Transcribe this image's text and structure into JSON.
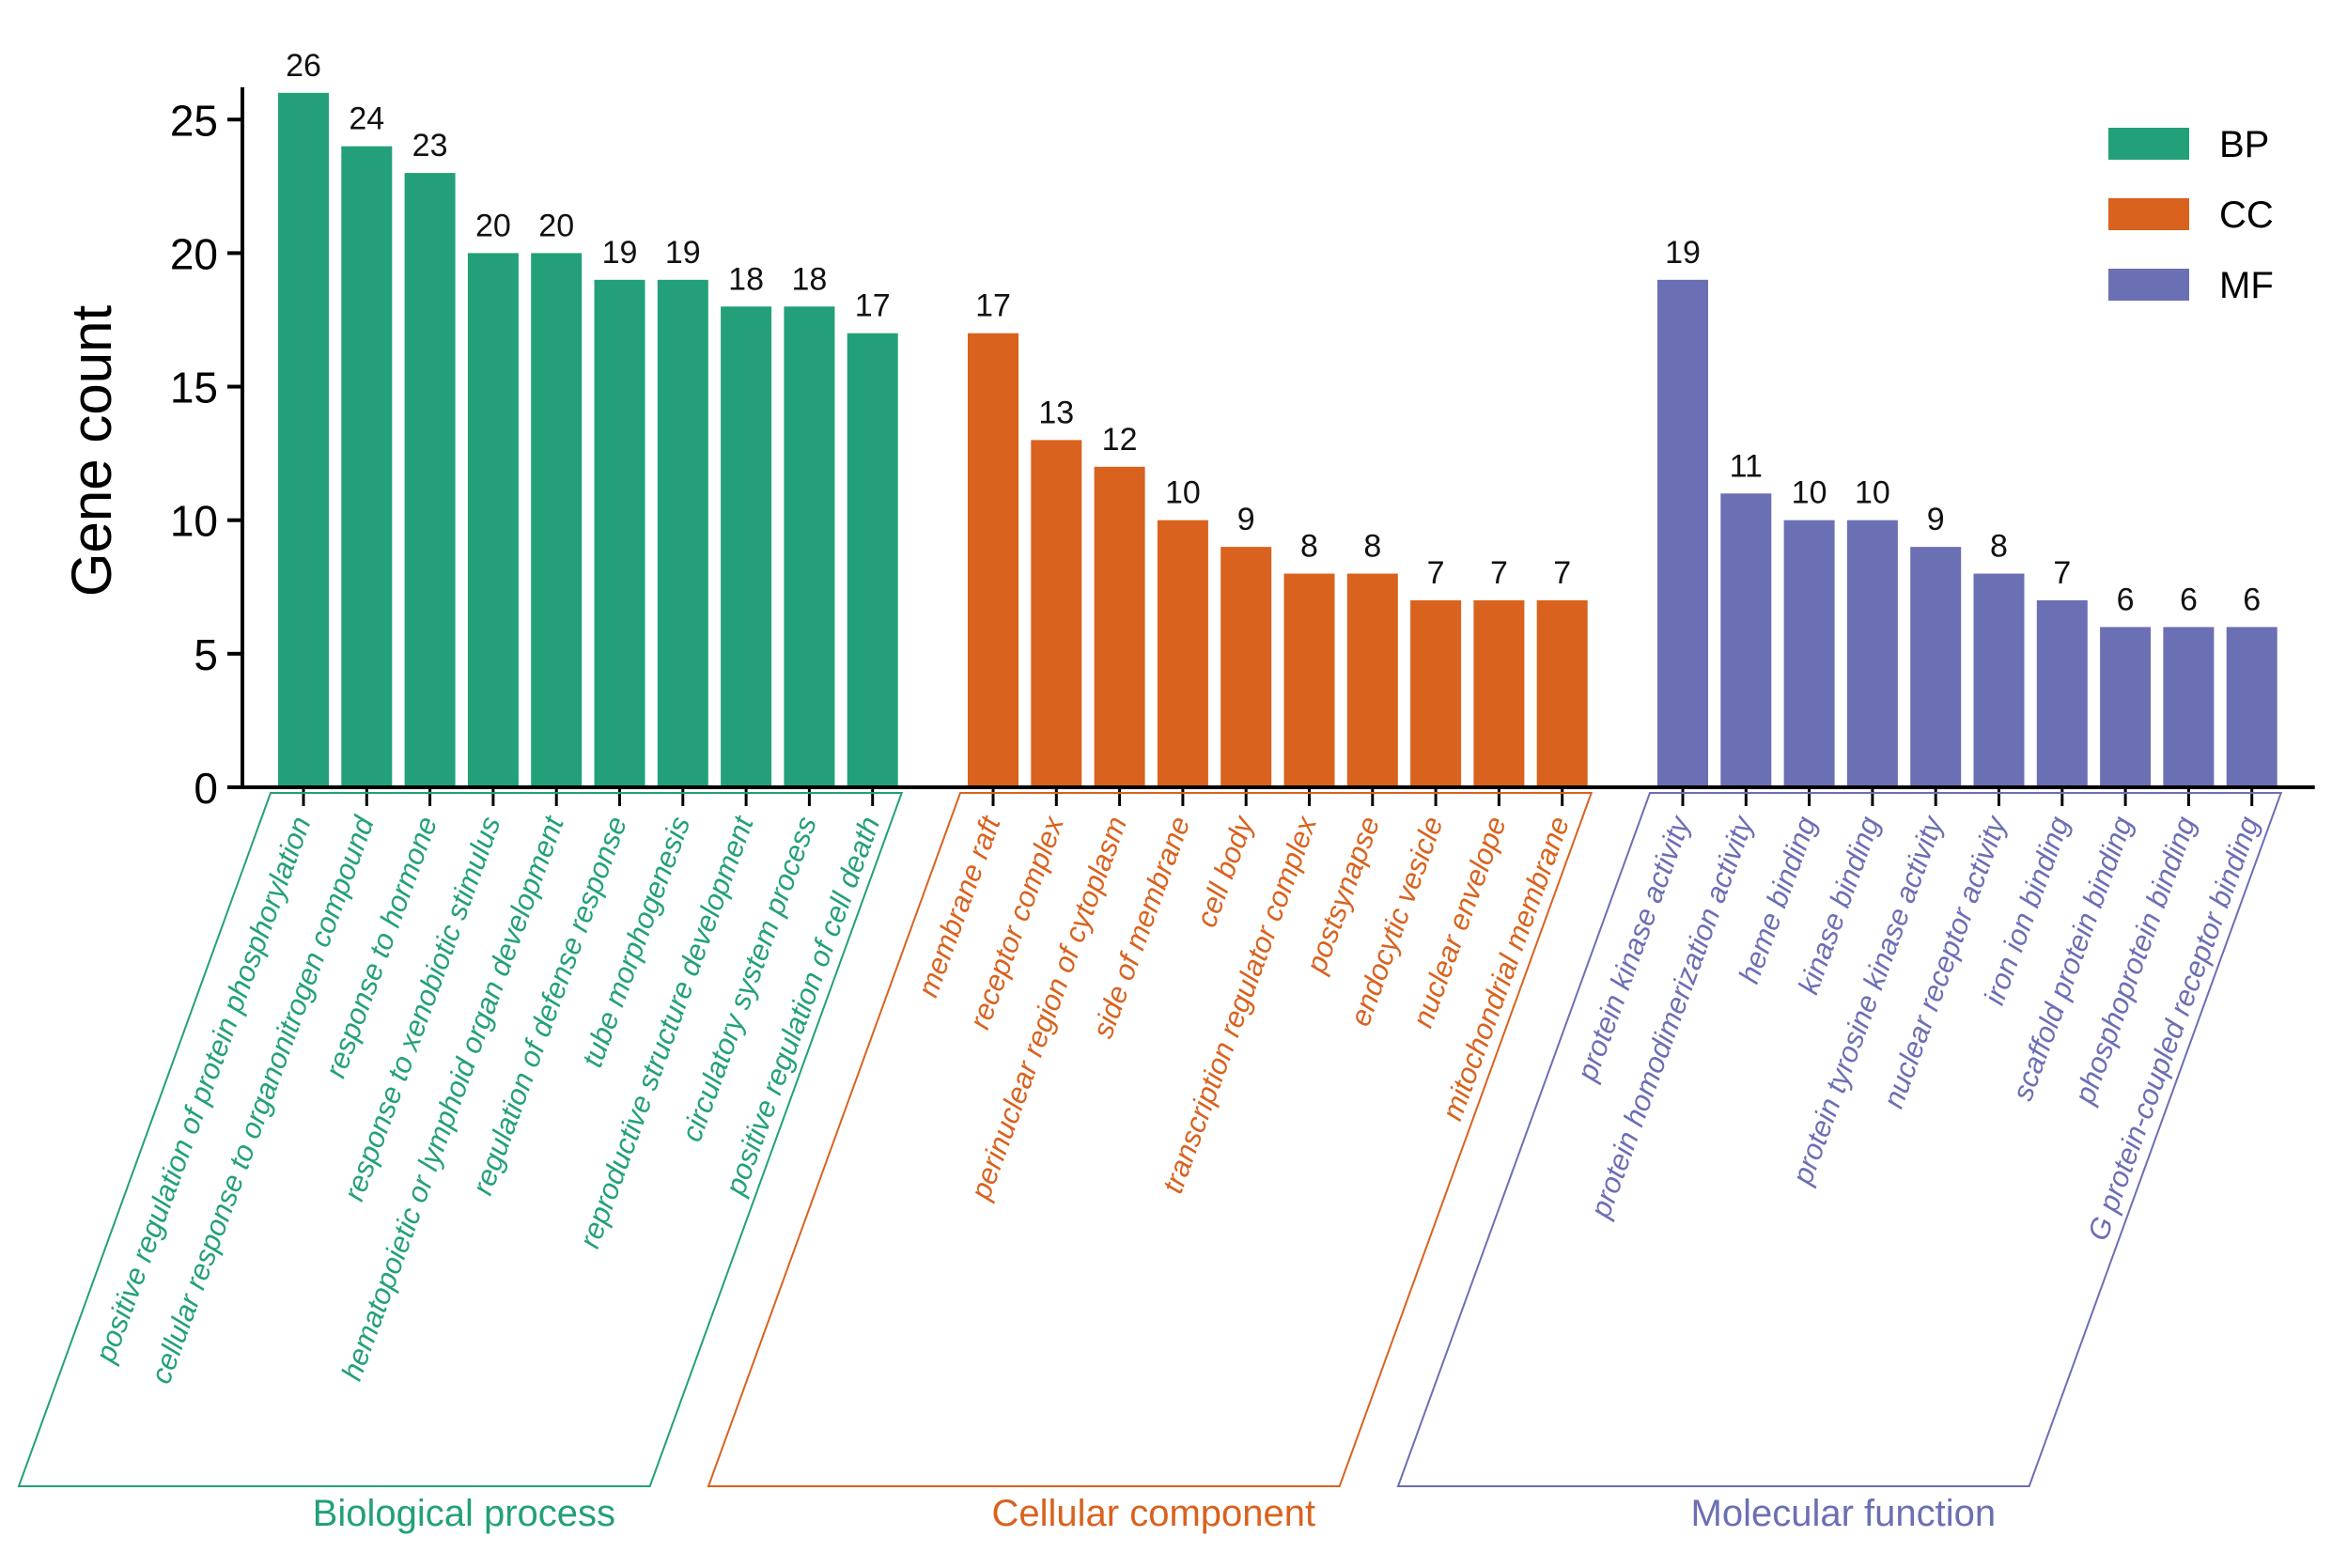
{
  "chart_data": {
    "type": "bar",
    "ylabel": "Gene count",
    "xlabel": "",
    "ylim": [
      0,
      26
    ],
    "yticks": [
      0,
      5,
      10,
      15,
      20,
      25
    ],
    "grid": false,
    "legend": {
      "position": "top-right",
      "entries": [
        {
          "key": "BP",
          "label": "BP",
          "color": "#23a07a"
        },
        {
          "key": "CC",
          "label": "CC",
          "color": "#d9621e"
        },
        {
          "key": "MF",
          "label": "MF",
          "color": "#6b6fb3"
        }
      ]
    },
    "groups": [
      {
        "key": "BP",
        "name": "Biological process",
        "color": "#23a07a",
        "categories": [
          "positive regulation of protein phosphorylation",
          "cellular response to organonitrogen compound",
          "response to hormone",
          "response to xenobiotic stimulus",
          "hematopoietic or lymphoid organ development",
          "regulation of defense response",
          "tube morphogenesis",
          "reproductive structure development",
          "circulatory system process",
          "positive regulation of cell death"
        ],
        "values": [
          26,
          24,
          23,
          20,
          20,
          19,
          19,
          18,
          18,
          17
        ]
      },
      {
        "key": "CC",
        "name": "Cellular component",
        "color": "#d9621e",
        "categories": [
          "membrane raft",
          "receptor complex",
          "perinuclear region of cytoplasm",
          "side of membrane",
          "cell body",
          "transcription regulator complex",
          "postsynapse",
          "endocytic vesicle",
          "nuclear envelope",
          "mitochondrial membrane"
        ],
        "values": [
          17,
          13,
          12,
          10,
          9,
          8,
          8,
          7,
          7,
          7
        ]
      },
      {
        "key": "MF",
        "name": "Molecular function",
        "color": "#6b6fb3",
        "categories": [
          "protein kinase activity",
          "protein homodimerization activity",
          "heme binding",
          "kinase binding",
          "protein tyrosine kinase activity",
          "nuclear receptor activity",
          "iron ion binding",
          "scaffold protein binding",
          "phosphoprotein binding",
          "G protein-coupled receptor binding"
        ],
        "values": [
          19,
          11,
          10,
          10,
          9,
          8,
          7,
          6,
          6,
          6
        ]
      }
    ]
  }
}
